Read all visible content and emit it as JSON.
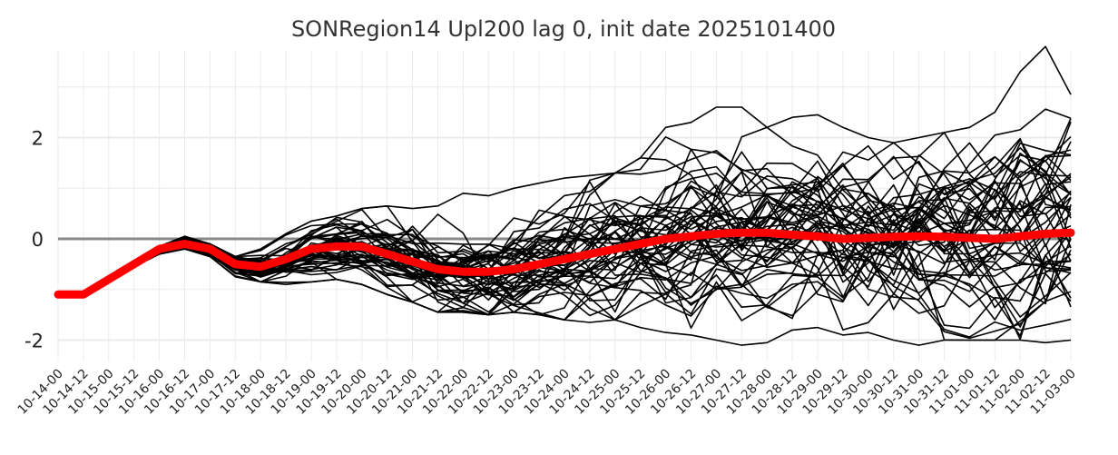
{
  "chart_data": {
    "type": "line",
    "title": "SONRegion14 Upl200 lag 0, init date 2025101400",
    "xlabel": "",
    "ylabel": "",
    "x": [
      "10-14-00",
      "10-14-12",
      "10-15-00",
      "10-15-12",
      "10-16-00",
      "10-16-12",
      "10-17-00",
      "10-17-12",
      "10-18-00",
      "10-18-12",
      "10-19-00",
      "10-19-12",
      "10-20-00",
      "10-20-12",
      "10-21-00",
      "10-21-12",
      "10-22-00",
      "10-22-12",
      "10-23-00",
      "10-23-12",
      "10-24-00",
      "10-24-12",
      "10-25-00",
      "10-25-12",
      "10-26-00",
      "10-26-12",
      "10-27-00",
      "10-27-12",
      "10-28-00",
      "10-28-12",
      "10-29-00",
      "10-29-12",
      "10-30-00",
      "10-30-12",
      "10-31-00",
      "10-31-12",
      "11-01-00",
      "11-01-12",
      "11-02-00",
      "11-02-12",
      "11-03-00"
    ],
    "yticks": [
      -2,
      0,
      2
    ],
    "ylim": [
      -2.4,
      3.8
    ],
    "grid": true,
    "reference_line": 0,
    "series": [
      {
        "role": "ensemble-mean",
        "color": "#ff0000",
        "values": [
          -1.1,
          -1.1,
          -0.8,
          -0.5,
          -0.2,
          -0.1,
          -0.2,
          -0.5,
          -0.55,
          -0.4,
          -0.2,
          -0.15,
          -0.15,
          -0.3,
          -0.45,
          -0.6,
          -0.65,
          -0.65,
          -0.6,
          -0.5,
          -0.4,
          -0.3,
          -0.2,
          -0.1,
          0.0,
          0.05,
          0.1,
          0.12,
          0.12,
          0.08,
          0.05,
          0.0,
          0.02,
          0.04,
          0.05,
          0.04,
          0.02,
          0.0,
          0.05,
          0.1,
          0.12
        ]
      },
      {
        "role": "ensemble-spread",
        "color": "#000000",
        "member_count": 50,
        "spread_sd": [
          0.0,
          0.0,
          0.03,
          0.05,
          0.06,
          0.07,
          0.08,
          0.1,
          0.14,
          0.2,
          0.26,
          0.3,
          0.32,
          0.36,
          0.38,
          0.4,
          0.42,
          0.44,
          0.46,
          0.5,
          0.54,
          0.58,
          0.62,
          0.66,
          0.68,
          0.7,
          0.72,
          0.74,
          0.76,
          0.78,
          0.8,
          0.82,
          0.84,
          0.86,
          0.88,
          0.9,
          0.92,
          0.95,
          0.98,
          1.0,
          1.0
        ],
        "max_values": [
          -1.1,
          -1.1,
          -0.75,
          -0.45,
          -0.15,
          0.05,
          -0.1,
          -0.35,
          -0.2,
          0.1,
          0.35,
          0.45,
          0.6,
          0.65,
          0.6,
          0.65,
          0.9,
          0.85,
          1.0,
          1.1,
          1.2,
          1.25,
          1.3,
          1.6,
          2.2,
          2.3,
          2.6,
          2.6,
          2.2,
          2.4,
          2.45,
          2.2,
          2.0,
          1.9,
          2.0,
          2.1,
          2.2,
          2.5,
          3.3,
          3.8,
          2.85
        ],
        "min_values": [
          -1.1,
          -1.1,
          -0.85,
          -0.55,
          -0.3,
          -0.2,
          -0.35,
          -0.75,
          -0.85,
          -0.9,
          -0.85,
          -0.8,
          -0.9,
          -1.1,
          -1.25,
          -1.45,
          -1.45,
          -1.5,
          -1.45,
          -1.5,
          -1.6,
          -1.65,
          -1.6,
          -1.75,
          -1.85,
          -1.9,
          -2.0,
          -2.1,
          -2.05,
          -1.8,
          -1.75,
          -1.9,
          -1.85,
          -2.0,
          -2.1,
          -2.0,
          -2.0,
          -2.0,
          -2.0,
          -2.05,
          -2.0
        ]
      }
    ]
  }
}
